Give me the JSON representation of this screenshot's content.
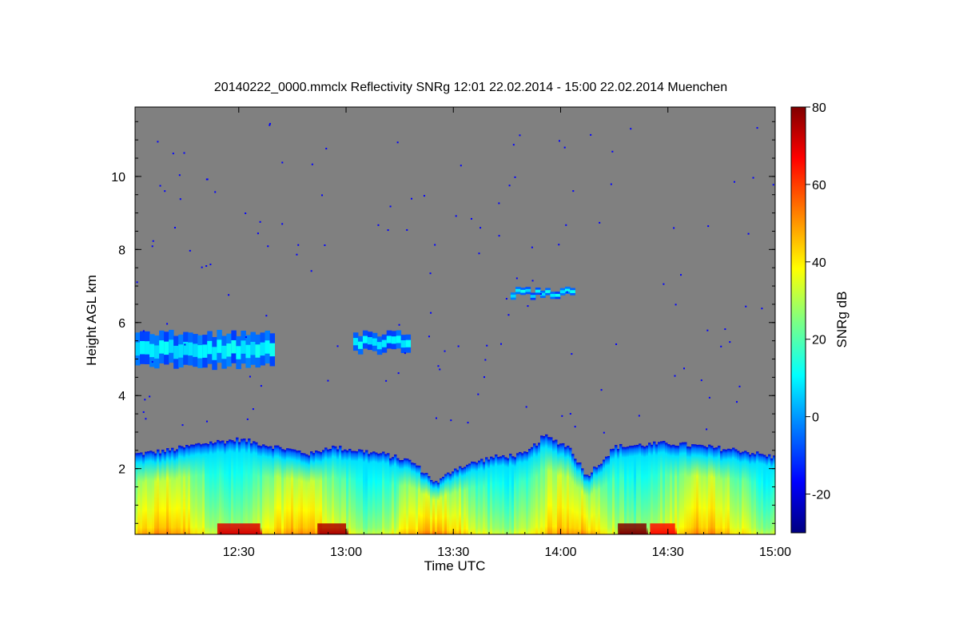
{
  "chart_data": {
    "type": "heatmap",
    "title": "20140222_0000.mmclx Reflectivity SNRg   12:01 22.02.2014 - 15:00 22.02.2014 Muenchen",
    "xlabel": "Time UTC",
    "ylabel": "Height AGL km",
    "colorbar_label": "SNRg dB",
    "x_tick_labels": [
      "12:30",
      "13:00",
      "13:30",
      "14:00",
      "14:30",
      "15:00"
    ],
    "x_tick_minutes": [
      30,
      60,
      90,
      120,
      150,
      180
    ],
    "xlim_minutes_after_12_00": [
      1,
      180
    ],
    "y_tick_labels": [
      "2",
      "4",
      "6",
      "8",
      "10"
    ],
    "ylim": [
      0.2,
      11.9
    ],
    "colorbar_tick_labels": [
      "80",
      "60",
      "40",
      "20",
      "0",
      "-20"
    ],
    "colorbar_range": [
      -30,
      80
    ],
    "background_color": "#808080",
    "colormap": [
      "#000080",
      "#0000ff",
      "#0080ff",
      "#00ffff",
      "#80ff80",
      "#ffff00",
      "#ff8000",
      "#ff0000",
      "#800000"
    ],
    "features": {
      "low_cloud_top_km": [
        [
          1,
          2.4
        ],
        [
          10,
          2.5
        ],
        [
          20,
          2.7
        ],
        [
          30,
          2.8
        ],
        [
          40,
          2.6
        ],
        [
          50,
          2.4
        ],
        [
          55,
          2.6
        ],
        [
          63,
          2.5
        ],
        [
          70,
          2.4
        ],
        [
          78,
          2.2
        ],
        [
          85,
          1.6
        ],
        [
          90,
          2.0
        ],
        [
          100,
          2.3
        ],
        [
          110,
          2.4
        ],
        [
          115,
          2.9
        ],
        [
          122,
          2.6
        ],
        [
          127,
          1.8
        ],
        [
          135,
          2.6
        ],
        [
          150,
          2.7
        ],
        [
          160,
          2.6
        ],
        [
          170,
          2.5
        ],
        [
          180,
          2.3
        ]
      ],
      "upper_layer_km": [
        {
          "t0": 1,
          "t1": 40,
          "bottom": 4.8,
          "top": 5.7
        },
        {
          "t0": 62,
          "t1": 78,
          "bottom": 5.2,
          "top": 5.7
        },
        {
          "t0": 106,
          "t1": 124,
          "bottom": 6.7,
          "top": 6.9
        }
      ],
      "near_surface_maxima": [
        {
          "t0": 24,
          "t1": 36,
          "snr_db": 70
        },
        {
          "t0": 52,
          "t1": 60,
          "snr_db": 75
        },
        {
          "t0": 136,
          "t1": 144,
          "snr_db": 80
        },
        {
          "t0": 145,
          "t1": 152,
          "snr_db": 65
        }
      ]
    }
  }
}
